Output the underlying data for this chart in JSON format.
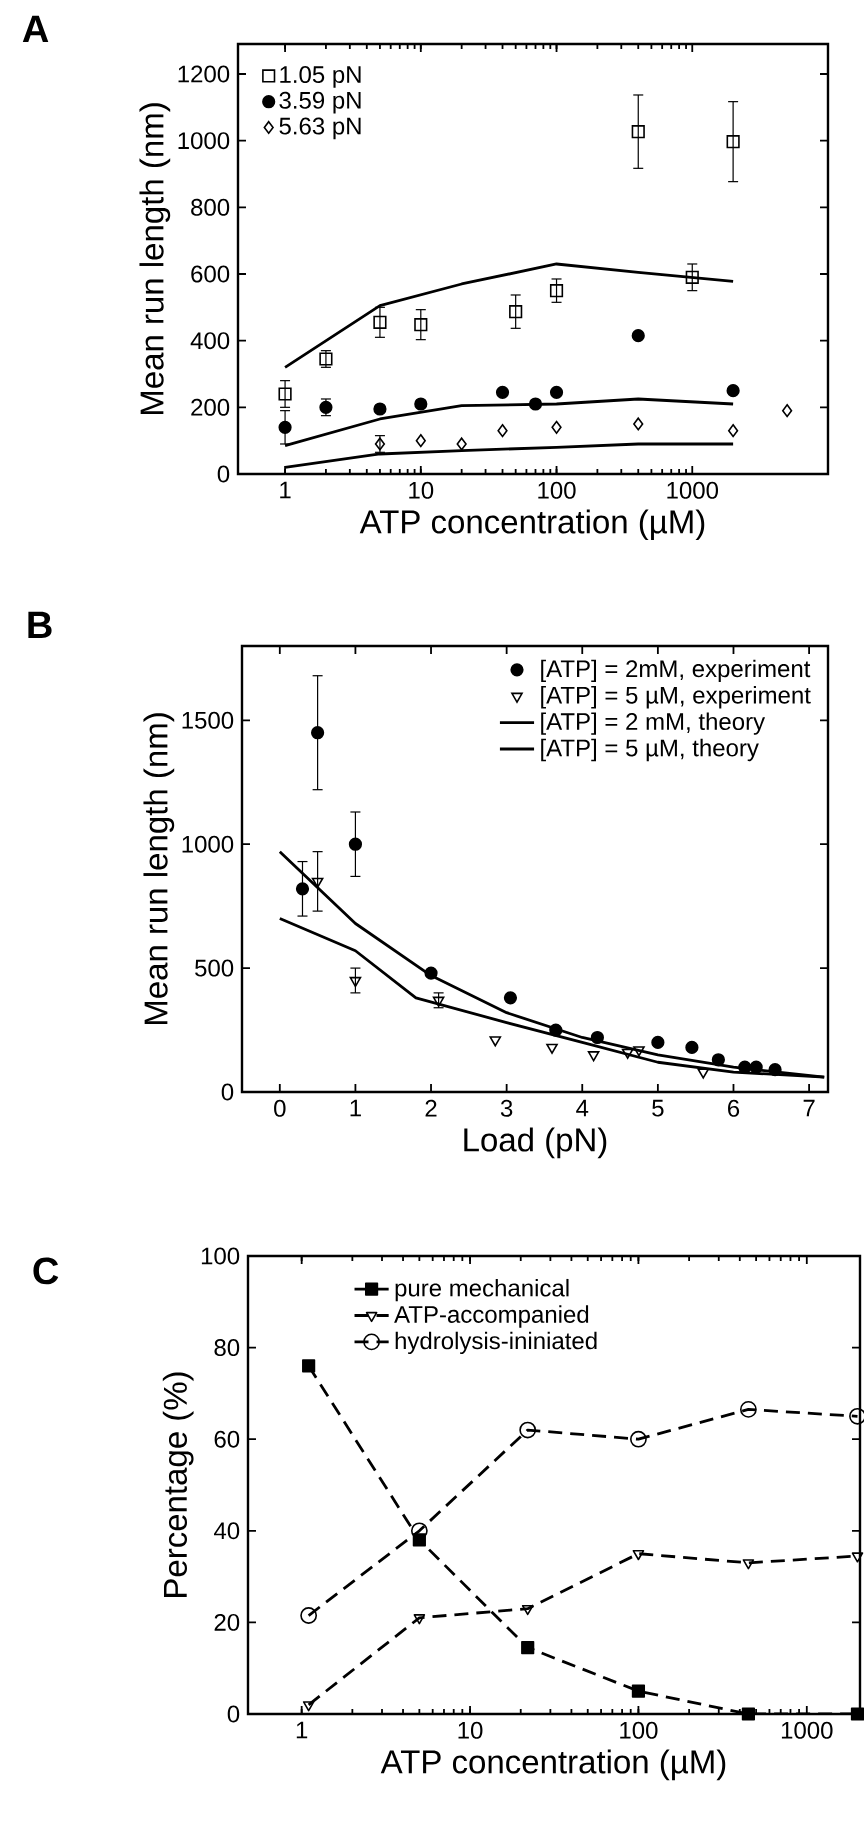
{
  "chart_data": [
    {
      "type": "scatter",
      "title": "A",
      "xlabel": "ATP concentration (µM)",
      "ylabel": "Mean run length (nm)",
      "log": "x",
      "xlim": [
        0.45,
        10000
      ],
      "ylim": [
        0,
        1290
      ],
      "xticks": [
        1,
        10,
        100,
        1000
      ],
      "yticks": [
        0,
        200,
        400,
        600,
        800,
        1000,
        1200
      ],
      "legend": "top left",
      "grid": false,
      "series": [
        {
          "name": "1.05 pN",
          "color": "#000000",
          "marker": "square",
          "x": [
            1,
            2,
            5,
            10,
            50,
            100,
            400,
            1000,
            2000
          ],
          "values": [
            240,
            345,
            455,
            448,
            487,
            550,
            1027,
            590,
            997
          ],
          "errors": [
            40,
            25,
            45,
            45,
            50,
            35,
            110,
            40,
            120
          ]
        },
        {
          "name": "3.59 pN",
          "color": "#000000",
          "marker": "circle",
          "x": [
            1,
            2,
            5,
            10,
            40,
            70,
            100,
            400,
            2000
          ],
          "values": [
            140,
            200,
            195,
            210,
            245,
            210,
            245,
            415,
            250
          ],
          "errors": [
            50,
            25,
            null,
            null,
            null,
            null,
            null,
            null,
            null
          ]
        },
        {
          "name": "5.63 pN",
          "color": "#000000",
          "marker": "diamond",
          "x": [
            5,
            10,
            20,
            40,
            100,
            400,
            2000,
            5000
          ],
          "values": [
            90,
            100,
            90,
            130,
            140,
            150,
            130,
            190
          ],
          "errors": [
            25,
            null,
            null,
            null,
            null,
            null,
            null,
            null
          ]
        },
        {
          "type": "line",
          "color": "#000000",
          "line_style": "solid",
          "marker": "none",
          "x": [
            1,
            5,
            20,
            100,
            400,
            2000
          ],
          "values": [
            320,
            505,
            570,
            630,
            605,
            578
          ]
        },
        {
          "type": "line",
          "color": "#000000",
          "line_style": "solid",
          "marker": "none",
          "x": [
            1,
            5,
            20,
            100,
            400,
            2000
          ],
          "values": [
            85,
            165,
            205,
            210,
            225,
            210
          ]
        },
        {
          "type": "line",
          "color": "#000000",
          "line_style": "solid",
          "marker": "none",
          "x": [
            1,
            5,
            20,
            100,
            400,
            2000
          ],
          "values": [
            20,
            60,
            70,
            80,
            90,
            90
          ]
        }
      ]
    },
    {
      "type": "scatter",
      "title": "B",
      "xlabel": "Load (pN)",
      "ylabel": "Mean run length (nm)",
      "xlim": [
        -0.5,
        7.25
      ],
      "ylim": [
        0,
        1800
      ],
      "xticks": [
        0,
        1,
        2,
        3,
        4,
        5,
        6,
        7
      ],
      "yticks": [
        0,
        500,
        1000,
        1500
      ],
      "legend": "top right",
      "grid": false,
      "series": [
        {
          "name": "[ATP] = 2mM, experiment",
          "color": "#000000",
          "marker": "circle",
          "x": [
            0.3,
            0.5,
            1,
            2,
            3.05,
            3.65,
            4.2,
            5,
            5.45,
            5.8,
            6.15,
            6.3,
            6.55
          ],
          "values": [
            820,
            1450,
            1000,
            480,
            380,
            250,
            220,
            200,
            180,
            130,
            100,
            100,
            90
          ],
          "errors": [
            110,
            230,
            130,
            null,
            null,
            null,
            null,
            null,
            null,
            null,
            null,
            null,
            null
          ]
        },
        {
          "name": "[ATP] = 5 µM, experiment",
          "color": "#000000",
          "marker": "triangle",
          "x": [
            0.5,
            1,
            2.1,
            2.85,
            3.6,
            4.15,
            4.6,
            4.75,
            5.6
          ],
          "values": [
            850,
            450,
            370,
            210,
            180,
            150,
            160,
            170,
            80
          ],
          "errors": [
            120,
            50,
            30,
            null,
            null,
            null,
            null,
            null,
            null
          ]
        },
        {
          "type": "line",
          "name": "[ATP] = 2 mM, theory",
          "color": "#000000",
          "line_style": "solid",
          "marker": "none",
          "x": [
            0,
            1,
            2,
            3,
            4,
            5,
            6,
            7.2
          ],
          "values": [
            970,
            680,
            470,
            320,
            220,
            150,
            100,
            60
          ]
        },
        {
          "type": "line",
          "name": "[ATP] = 5 µM,  theory",
          "color": "#000000",
          "line_style": "solid",
          "marker": "none",
          "x": [
            0,
            1,
            1.8,
            3,
            4,
            5,
            6,
            7.2
          ],
          "values": [
            700,
            570,
            380,
            280,
            200,
            120,
            80,
            60
          ]
        }
      ]
    },
    {
      "type": "line",
      "title": "C",
      "xlabel": "ATP concentration (µM)",
      "ylabel": "Percentage (%)",
      "log": "x",
      "xlim": [
        0.48,
        2070
      ],
      "ylim": [
        0,
        100
      ],
      "xticks": [
        1,
        10,
        100,
        1000
      ],
      "yticks": [
        0,
        20,
        40,
        60,
        80,
        100
      ],
      "legend": "top",
      "grid": false,
      "line_style": "dashed",
      "series": [
        {
          "name": "pure mechanical",
          "color": "#000000",
          "marker": "square",
          "x": [
            1.1,
            5,
            22,
            100,
            450,
            2000
          ],
          "values": [
            76,
            38,
            14.5,
            5,
            0,
            0
          ]
        },
        {
          "name": "ATP-accompanied",
          "color": "#000000",
          "marker": "triangle",
          "x": [
            1.1,
            5,
            22,
            100,
            450,
            2000
          ],
          "values": [
            2,
            21,
            23,
            35,
            33,
            34.5
          ]
        },
        {
          "name": "hydrolysis-ininiated",
          "color": "#000000",
          "marker": "circle",
          "x": [
            1.1,
            5,
            22,
            100,
            450,
            2000
          ],
          "values": [
            21.5,
            40,
            62,
            60,
            66.5,
            65
          ]
        }
      ]
    }
  ]
}
